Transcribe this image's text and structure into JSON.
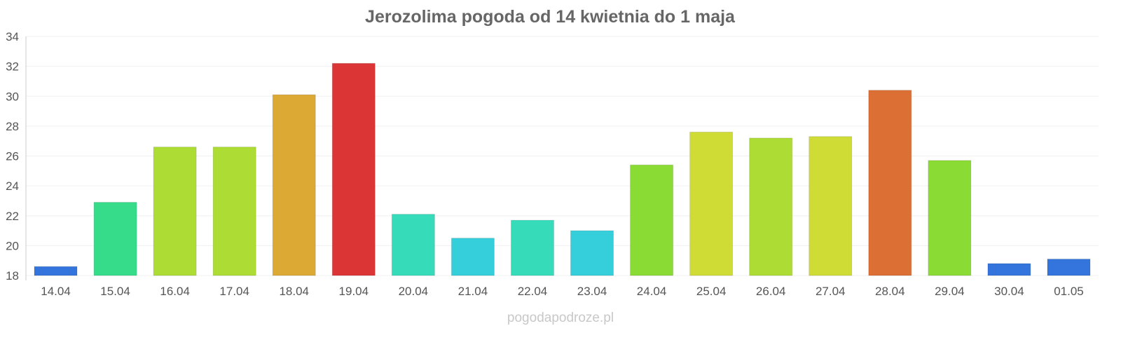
{
  "chart_data": {
    "type": "bar",
    "title": "Jerozolima pogoda od 14 kwietnia do 1 maja",
    "xlabel": "",
    "ylabel": "",
    "ylim": [
      18,
      34
    ],
    "yticks": [
      18,
      20,
      22,
      24,
      26,
      28,
      30,
      32,
      34
    ],
    "grid": true,
    "categories": [
      "14.04",
      "15.04",
      "16.04",
      "17.04",
      "18.04",
      "19.04",
      "20.04",
      "21.04",
      "22.04",
      "23.04",
      "24.04",
      "25.04",
      "26.04",
      "27.04",
      "28.04",
      "29.04",
      "30.04",
      "01.05"
    ],
    "values": [
      18.6,
      22.9,
      26.6,
      26.6,
      30.1,
      32.2,
      22.1,
      20.5,
      21.7,
      21.0,
      25.4,
      27.6,
      27.2,
      27.3,
      30.4,
      25.7,
      18.8,
      19.1
    ],
    "colors": [
      "#3375dd",
      "#36dc8a",
      "#addd34",
      "#addd34",
      "#dba934",
      "#db3535",
      "#36dcb9",
      "#35cfdb",
      "#36dcb9",
      "#35cfdb",
      "#8adc35",
      "#cfdc35",
      "#addd34",
      "#cfdc35",
      "#dc6f34",
      "#8adc35",
      "#3375dd",
      "#3375dd"
    ]
  },
  "watermark": "pogodapodroze.pl"
}
